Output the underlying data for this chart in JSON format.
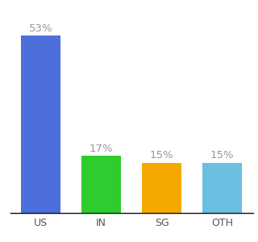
{
  "categories": [
    "US",
    "IN",
    "SG",
    "OTH"
  ],
  "values": [
    53,
    17,
    15,
    15
  ],
  "labels": [
    "53%",
    "17%",
    "15%",
    "15%"
  ],
  "bar_colors": [
    "#4d6fdb",
    "#2ecc2e",
    "#f5a800",
    "#6bbfe0"
  ],
  "ylim": [
    0,
    60
  ],
  "label_fontsize": 9.5,
  "tick_fontsize": 9,
  "background_color": "#ffffff",
  "label_color": "#999999"
}
